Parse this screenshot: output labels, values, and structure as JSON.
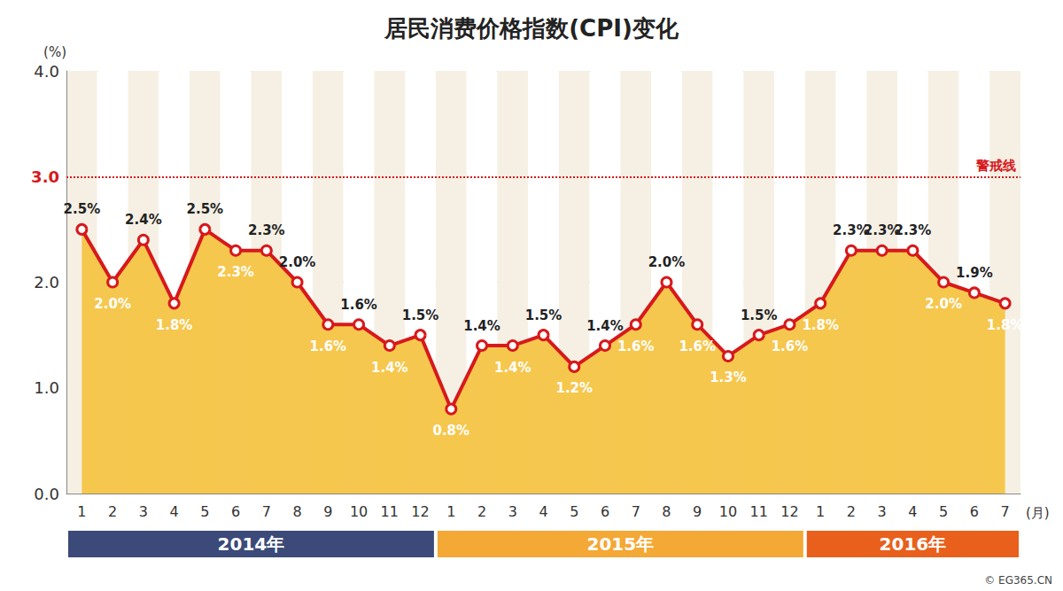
{
  "chart_data": {
    "type": "line",
    "title": "居民消费价格指数(CPI)变化",
    "y_label": "(%)",
    "x_label": "(月)",
    "categories": [
      "1",
      "2",
      "3",
      "4",
      "5",
      "6",
      "7",
      "8",
      "9",
      "10",
      "11",
      "12",
      "1",
      "2",
      "3",
      "4",
      "5",
      "6",
      "7",
      "8",
      "9",
      "10",
      "11",
      "12",
      "1",
      "2",
      "3",
      "4",
      "5",
      "6",
      "7"
    ],
    "values": [
      2.5,
      2.0,
      2.4,
      1.8,
      2.5,
      2.3,
      2.3,
      2.0,
      1.6,
      1.6,
      1.4,
      1.5,
      0.8,
      1.4,
      1.4,
      1.5,
      1.2,
      1.4,
      1.6,
      2.0,
      1.6,
      1.3,
      1.5,
      1.6,
      1.8,
      2.3,
      2.3,
      2.3,
      2.0,
      1.9,
      1.8
    ],
    "value_labels": [
      "2.5%",
      "2.0%",
      "2.4%",
      "1.8%",
      "2.5%",
      "2.3%",
      "2.3%",
      "2.0%",
      "1.6%",
      "1.6%",
      "1.4%",
      "1.5%",
      "0.8%",
      "1.4%",
      "1.4%",
      "1.5%",
      "1.2%",
      "1.4%",
      "1.6%",
      "2.0%",
      "1.6%",
      "1.3%",
      "1.5%",
      "1.6%",
      "1.8%",
      "2.3%",
      "2.3%",
      "2.3%",
      "2.0%",
      "1.9%",
      "1.8%"
    ],
    "color": "#d7191c",
    "marker": "circle",
    "data_labels": true,
    "grid": true,
    "ylim": [
      0,
      4
    ],
    "yticks": [
      {
        "value": 0,
        "label": "0.0"
      },
      {
        "value": 1,
        "label": "1.0"
      },
      {
        "value": 2,
        "label": "2.0"
      },
      {
        "value": 3,
        "label": "3.0"
      },
      {
        "value": 4,
        "label": "4.0"
      }
    ],
    "reference_line": {
      "value": 3,
      "label": "警戒线"
    },
    "periods": [
      {
        "label": "2014年",
        "months": 12,
        "color": "#3b4a78"
      },
      {
        "label": "2015年",
        "months": 12,
        "color": "#f4a835"
      },
      {
        "label": "2016年",
        "months": 7,
        "color": "#e8601c"
      }
    ],
    "source": "© EG365.CN"
  }
}
